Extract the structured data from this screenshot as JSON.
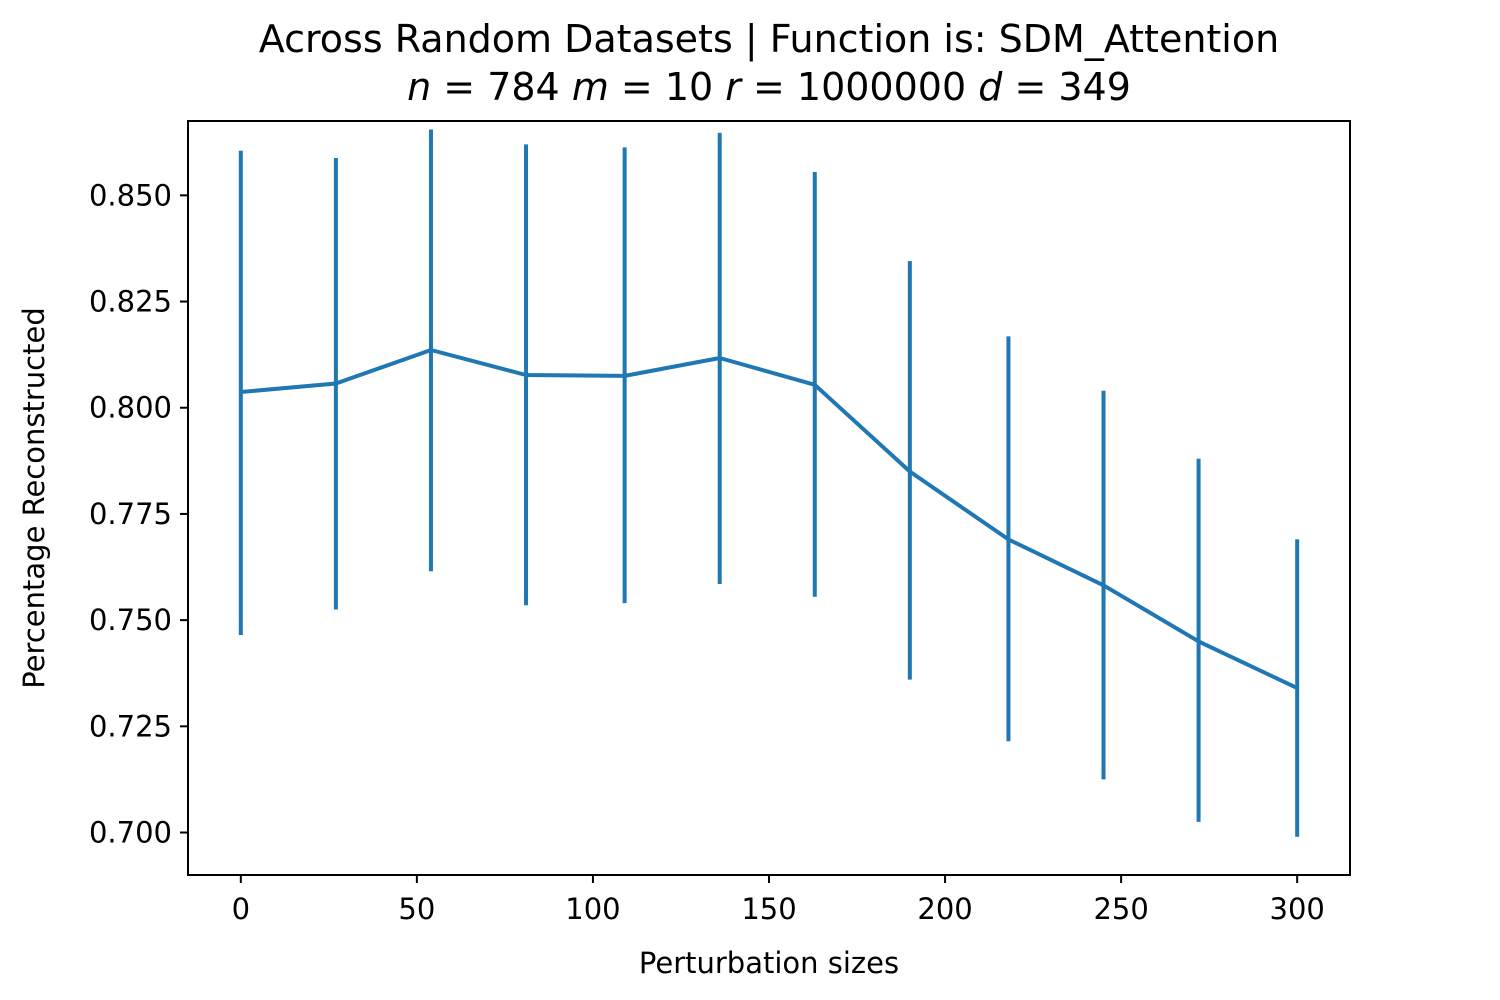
{
  "chart_data": {
    "type": "line",
    "title": "Across Random Datasets | Function is: SDM_Attention",
    "subtitle_parts": [
      {
        "text": "n",
        "italic": true
      },
      {
        "text": " = 784 ",
        "italic": false
      },
      {
        "text": "m",
        "italic": true
      },
      {
        "text": " = 10 ",
        "italic": false
      },
      {
        "text": "r",
        "italic": true
      },
      {
        "text": " = 1000000 ",
        "italic": false
      },
      {
        "text": "d",
        "italic": true
      },
      {
        "text": " = 349",
        "italic": false
      }
    ],
    "xlabel": "Perturbation sizes",
    "ylabel": "Percentage Reconstructed",
    "xlim": [
      -15,
      315
    ],
    "ylim": [
      0.69,
      0.8675
    ],
    "x_ticks": [
      0,
      50,
      100,
      150,
      200,
      250,
      300
    ],
    "x_tick_labels": [
      "0",
      "50",
      "100",
      "150",
      "200",
      "250",
      "300"
    ],
    "y_ticks": [
      0.7,
      0.725,
      0.75,
      0.775,
      0.8,
      0.825,
      0.85
    ],
    "y_tick_labels": [
      "0.700",
      "0.725",
      "0.750",
      "0.775",
      "0.800",
      "0.825",
      "0.850"
    ],
    "grid": false,
    "color": "#1f77b4",
    "series": [
      {
        "x": [
          0,
          27,
          54,
          81,
          109,
          136,
          163,
          190,
          218,
          245,
          272,
          300
        ],
        "y": [
          0.8037,
          0.8057,
          0.8136,
          0.8077,
          0.8075,
          0.8117,
          0.8054,
          0.785,
          0.769,
          0.7582,
          0.745,
          0.734
        ],
        "yerr_low": [
          0.7465,
          0.7525,
          0.7615,
          0.7535,
          0.754,
          0.7585,
          0.7555,
          0.736,
          0.7215,
          0.7125,
          0.7025,
          0.699
        ],
        "yerr_high": [
          0.8605,
          0.8588,
          0.8655,
          0.862,
          0.8613,
          0.8647,
          0.8555,
          0.8345,
          0.8168,
          0.804,
          0.788,
          0.769
        ]
      }
    ]
  }
}
